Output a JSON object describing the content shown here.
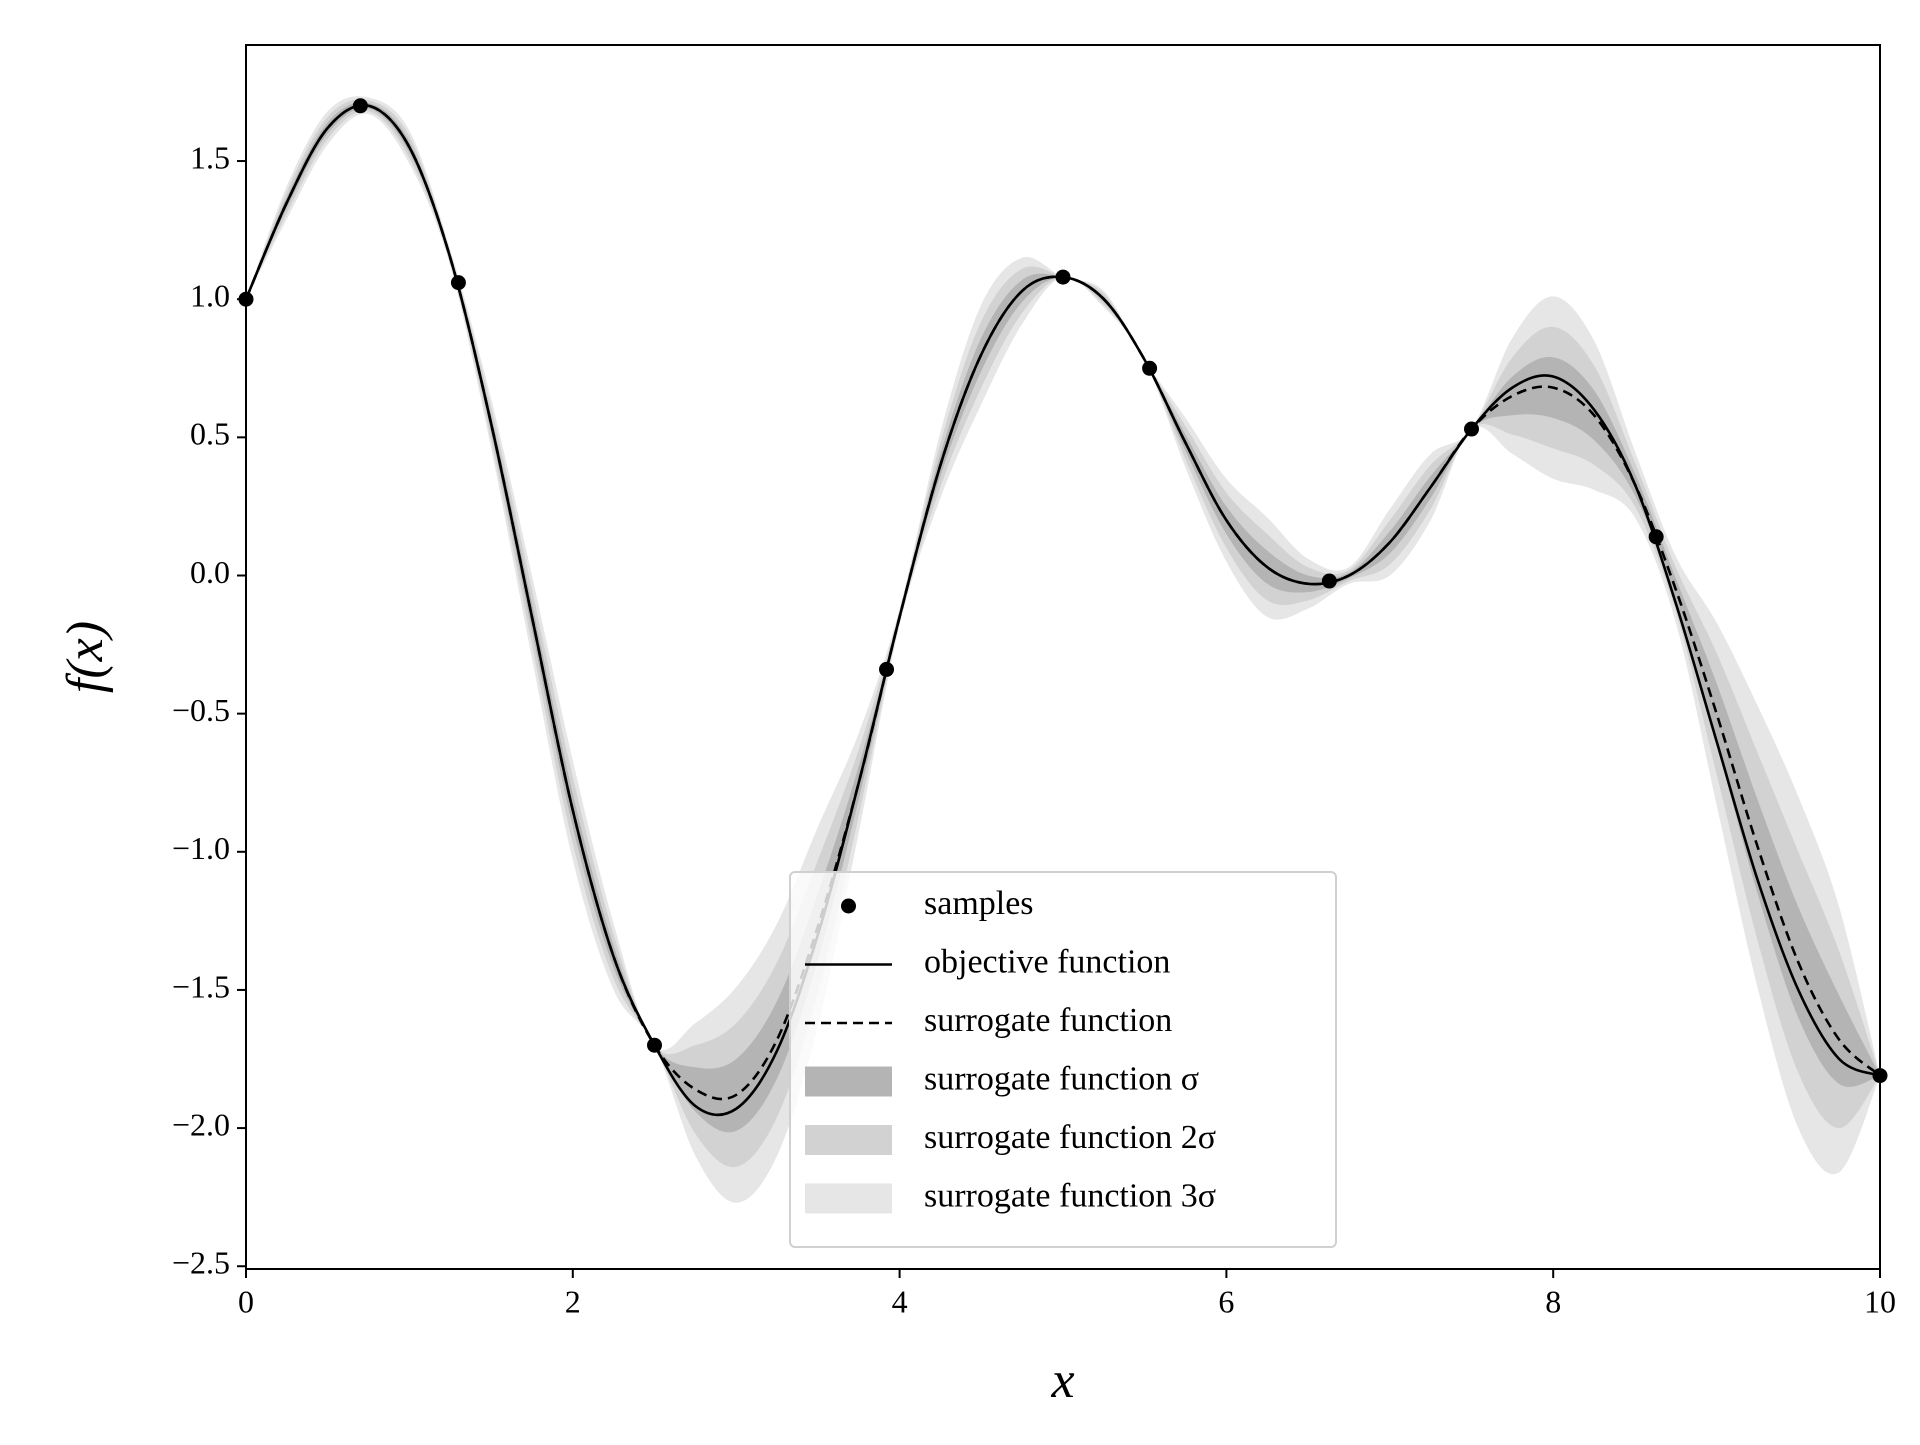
{
  "chart_data": {
    "type": "line",
    "x_label": "x",
    "y_label": "f(x)",
    "xlim": [
      0,
      10
    ],
    "ylim": [
      -2.51,
      1.92
    ],
    "xticks": [
      0,
      2,
      4,
      6,
      8,
      10
    ],
    "yticks": [
      {
        "value": -2.5,
        "label": "−2.5"
      },
      {
        "value": -2.0,
        "label": "−2.0"
      },
      {
        "value": -1.5,
        "label": "−1.5"
      },
      {
        "value": -1.0,
        "label": "−1.0"
      },
      {
        "value": -0.5,
        "label": "−0.5"
      },
      {
        "value": 0.0,
        "label": "0.0"
      },
      0.5,
      {
        "value": 1.0,
        "label": "1.0"
      },
      1.5
    ],
    "legend": "lower center",
    "x": [
      0,
      0.25,
      0.5,
      0.75,
      1,
      1.25,
      1.5,
      1.75,
      2,
      2.25,
      2.5,
      2.75,
      3,
      3.25,
      3.5,
      3.75,
      4,
      4.25,
      4.5,
      4.75,
      5,
      5.25,
      5.5,
      5.75,
      6,
      6.25,
      6.5,
      6.75,
      7,
      7.25,
      7.5,
      7.75,
      8,
      8.25,
      8.5,
      8.75,
      9,
      9.25,
      9.5,
      9.75,
      10
    ],
    "series": [
      {
        "name": "samples",
        "type": "scatter",
        "color": "#000000",
        "x": [
          0,
          0.7,
          1.3,
          2.5,
          3.92,
          5.0,
          5.53,
          6.63,
          7.5,
          8.63,
          10
        ],
        "values": [
          1.0,
          1.7,
          1.06,
          -1.7,
          -0.34,
          1.08,
          0.75,
          -0.02,
          0.53,
          0.14,
          -1.81
        ]
      },
      {
        "name": "objective function",
        "type": "line",
        "color": "#000000",
        "dash": false,
        "values": [
          1.0,
          1.35,
          1.62,
          1.7,
          1.55,
          1.15,
          0.55,
          -0.15,
          -0.85,
          -1.38,
          -1.7,
          -1.92,
          -1.93,
          -1.72,
          -1.3,
          -0.75,
          -0.15,
          0.4,
          0.8,
          1.03,
          1.08,
          1.0,
          0.78,
          0.48,
          0.2,
          0.03,
          -0.03,
          0.0,
          0.12,
          0.32,
          0.53,
          0.68,
          0.72,
          0.6,
          0.33,
          -0.1,
          -0.6,
          -1.1,
          -1.5,
          -1.75,
          -1.81
        ]
      },
      {
        "name": "surrogate function",
        "type": "line",
        "color": "#000000",
        "dash": true,
        "values": [
          1.0,
          1.35,
          1.62,
          1.7,
          1.55,
          1.15,
          0.55,
          -0.15,
          -0.85,
          -1.38,
          -1.7,
          -1.86,
          -1.88,
          -1.68,
          -1.27,
          -0.75,
          -0.15,
          0.4,
          0.8,
          1.03,
          1.08,
          1.0,
          0.78,
          0.48,
          0.2,
          0.03,
          -0.03,
          0.0,
          0.12,
          0.32,
          0.53,
          0.65,
          0.68,
          0.58,
          0.33,
          -0.05,
          -0.5,
          -0.98,
          -1.4,
          -1.68,
          -1.81
        ]
      },
      {
        "name": "surrogate function σ",
        "type": "band",
        "color": "#b4b4b4",
        "lower": [
          1.0,
          1.33,
          1.6,
          1.69,
          1.53,
          1.14,
          0.52,
          -0.2,
          -0.91,
          -1.42,
          -1.7,
          -1.94,
          -2.01,
          -1.82,
          -1.39,
          -0.81,
          -0.16,
          0.36,
          0.74,
          0.99,
          1.08,
          0.99,
          0.78,
          0.45,
          0.15,
          -0.03,
          -0.06,
          -0.01,
          0.08,
          0.28,
          0.53,
          0.58,
          0.57,
          0.49,
          0.29,
          -0.09,
          -0.61,
          -1.15,
          -1.6,
          -1.84,
          -1.81
        ],
        "upper": [
          1.0,
          1.37,
          1.64,
          1.71,
          1.57,
          1.16,
          0.58,
          -0.1,
          -0.79,
          -1.34,
          -1.7,
          -1.78,
          -1.75,
          -1.54,
          -1.15,
          -0.69,
          -0.14,
          0.44,
          0.86,
          1.07,
          1.08,
          1.01,
          0.78,
          0.51,
          0.25,
          0.09,
          0,
          0.01,
          0.16,
          0.36,
          0.53,
          0.72,
          0.79,
          0.67,
          0.37,
          -0.01,
          -0.39,
          -0.81,
          -1.2,
          -1.52,
          -1.81
        ]
      },
      {
        "name": "surrogate function 2σ",
        "type": "band",
        "color": "#d2d2d2",
        "lower": [
          1.0,
          1.31,
          1.58,
          1.68,
          1.51,
          1.13,
          0.49,
          -0.25,
          -0.97,
          -1.46,
          -1.7,
          -2.02,
          -2.14,
          -1.96,
          -1.51,
          -0.87,
          -0.17,
          0.32,
          0.68,
          0.95,
          1.08,
          0.98,
          0.78,
          0.42,
          0.1,
          -0.09,
          -0.09,
          -0.02,
          0.04,
          0.24,
          0.53,
          0.51,
          0.46,
          0.4,
          0.25,
          -0.13,
          -0.72,
          -1.32,
          -1.8,
          -2.0,
          -1.81
        ],
        "upper": [
          1.0,
          1.39,
          1.66,
          1.72,
          1.59,
          1.17,
          0.61,
          -0.05,
          -0.73,
          -1.3,
          -1.7,
          -1.7,
          -1.62,
          -1.4,
          -1.03,
          -0.63,
          -0.13,
          0.48,
          0.92,
          1.11,
          1.08,
          1.02,
          0.78,
          0.54,
          0.3,
          0.15,
          0.03,
          0.02,
          0.2,
          0.4,
          0.53,
          0.79,
          0.9,
          0.76,
          0.41,
          0.03,
          -0.28,
          -0.64,
          -1.0,
          -1.36,
          -1.81
        ]
      },
      {
        "name": "surrogate function 3σ",
        "type": "band",
        "color": "#e6e6e6",
        "lower": [
          1.0,
          1.29,
          1.56,
          1.67,
          1.49,
          1.12,
          0.46,
          -0.3,
          -1.03,
          -1.5,
          -1.7,
          -2.1,
          -2.27,
          -2.1,
          -1.63,
          -0.93,
          -0.18,
          0.28,
          0.62,
          0.91,
          1.08,
          0.97,
          0.78,
          0.39,
          0.05,
          -0.15,
          -0.12,
          -0.03,
          0.0,
          0.2,
          0.53,
          0.44,
          0.35,
          0.31,
          0.21,
          -0.17,
          -0.83,
          -1.49,
          -2.0,
          -2.16,
          -1.81
        ],
        "upper": [
          1.0,
          1.41,
          1.68,
          1.73,
          1.61,
          1.18,
          0.64,
          0,
          -0.67,
          -1.26,
          -1.7,
          -1.62,
          -1.49,
          -1.26,
          -0.91,
          -0.57,
          -0.12,
          0.52,
          0.98,
          1.15,
          1.08,
          1.03,
          0.78,
          0.57,
          0.35,
          0.21,
          0.06,
          0.03,
          0.24,
          0.44,
          0.53,
          0.86,
          1.01,
          0.85,
          0.45,
          0.07,
          -0.17,
          -0.47,
          -0.8,
          -1.2,
          -1.81
        ]
      }
    ]
  }
}
